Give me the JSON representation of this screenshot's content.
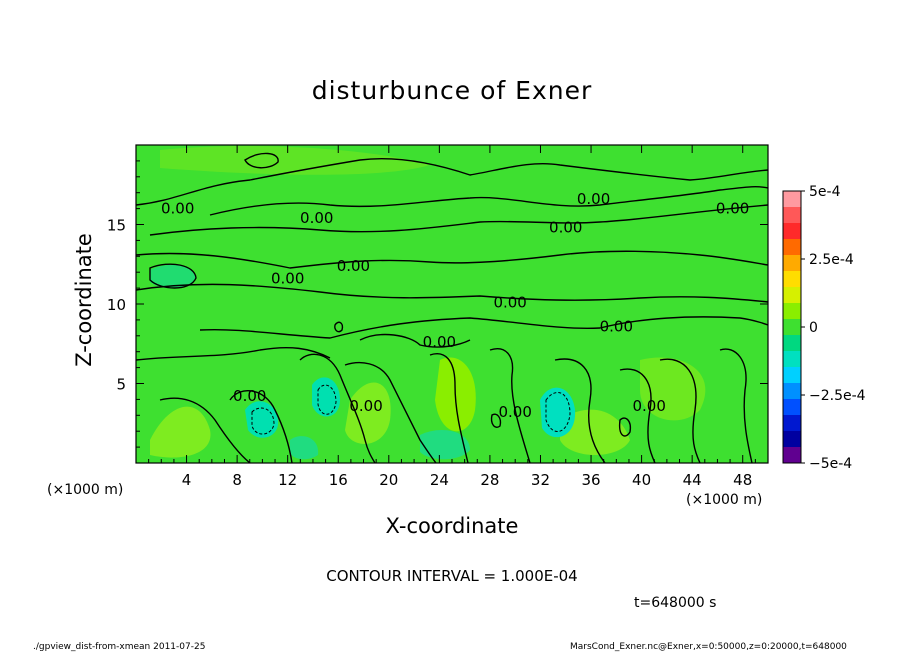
{
  "chart_data": {
    "type": "heatmap",
    "title": "disturbunce of Exner",
    "xlabel": "X-coordinate",
    "ylabel": "Z-coordinate",
    "x_unit": "(×1000 m)",
    "x_ticks": [
      4,
      8,
      12,
      16,
      20,
      24,
      28,
      32,
      36,
      40,
      44,
      48
    ],
    "y_ticks": [
      5,
      10,
      15
    ],
    "xlim": [
      0,
      50
    ],
    "ylim": [
      0,
      20
    ],
    "contour_labels": [
      {
        "text": "0.00",
        "x": 3.3,
        "y": 16.0
      },
      {
        "text": "0.00",
        "x": 14.3,
        "y": 15.4
      },
      {
        "text": "0.00",
        "x": 36.2,
        "y": 16.6
      },
      {
        "text": "0.00",
        "x": 47.2,
        "y": 16.0
      },
      {
        "text": "0.00",
        "x": 34.0,
        "y": 14.8
      },
      {
        "text": "0.00",
        "x": 17.2,
        "y": 12.4
      },
      {
        "text": "0.00",
        "x": 12.0,
        "y": 11.6
      },
      {
        "text": "0.00",
        "x": 29.6,
        "y": 10.1
      },
      {
        "text": "0.00",
        "x": 38.0,
        "y": 8.6
      },
      {
        "text": "0.00",
        "x": 24.0,
        "y": 7.6
      },
      {
        "text": "0.00",
        "x": 9.0,
        "y": 4.2
      },
      {
        "text": "0.00",
        "x": 18.2,
        "y": 3.6
      },
      {
        "text": "0.00",
        "x": 30.0,
        "y": 3.2
      },
      {
        "text": "0.00",
        "x": 40.6,
        "y": 3.6
      }
    ],
    "colorbar": {
      "min": -0.0005,
      "max": 0.0005,
      "tick_labels": [
        "5e-4",
        "2.5e-4",
        "0",
        "−2.5e-4",
        "−5e-4"
      ],
      "tick_values": [
        0.0005,
        0.00025,
        0,
        -0.00025,
        -0.0005
      ],
      "colors": [
        "#ff9aa0",
        "#ff5858",
        "#ff2a2a",
        "#ff6a00",
        "#ffaa00",
        "#ffdd00",
        "#d6f000",
        "#8aee00",
        "#3ee030",
        "#00d880",
        "#00e0c0",
        "#00d0ff",
        "#0090ff",
        "#0050ff",
        "#0018d0",
        "#0000a0",
        "#600090"
      ]
    },
    "contour_interval": "CONTOUR INTERVAL = 1.000E-04",
    "time": "t=648000 s"
  },
  "footer": {
    "left": "./gpview_dist-from-xmean  2011-07-25",
    "right": "MarsCond_Exner.nc@Exner,x=0:50000,z=0:20000,t=648000"
  }
}
